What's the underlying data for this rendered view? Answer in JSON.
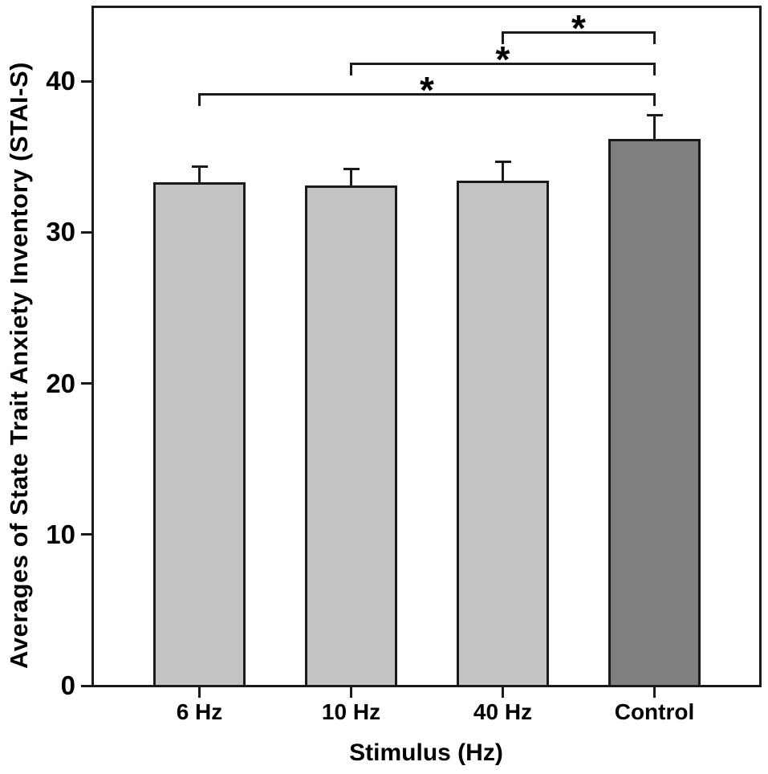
{
  "chart_data": {
    "type": "bar",
    "categories": [
      "6 Hz",
      "10 Hz",
      "40 Hz",
      "Control"
    ],
    "values": [
      33.3,
      33.1,
      33.4,
      36.2
    ],
    "errors_upper": [
      1.1,
      1.1,
      1.3,
      1.6
    ],
    "bar_colors": [
      "#c3c3c3",
      "#c3c3c3",
      "#c3c3c3",
      "#7f7f7f"
    ],
    "bar_border_color": "#1a1a1a",
    "axis_color": "#1a1a1a",
    "background_color": "#ffffff",
    "title": "",
    "xlabel": "Stimulus (Hz)",
    "ylabel": "Averages of State Trait Anxiety Inventory (STAI-S)",
    "ylim": [
      0,
      45
    ],
    "yticks": [
      0,
      10,
      20,
      30,
      40
    ],
    "grid": false,
    "legend": false,
    "significance_brackets": [
      {
        "from": "40 Hz",
        "to": "Control",
        "label": "*"
      },
      {
        "from": "10 Hz",
        "to": "Control",
        "label": "*"
      },
      {
        "from": "6 Hz",
        "to": "Control",
        "label": "*"
      }
    ]
  }
}
